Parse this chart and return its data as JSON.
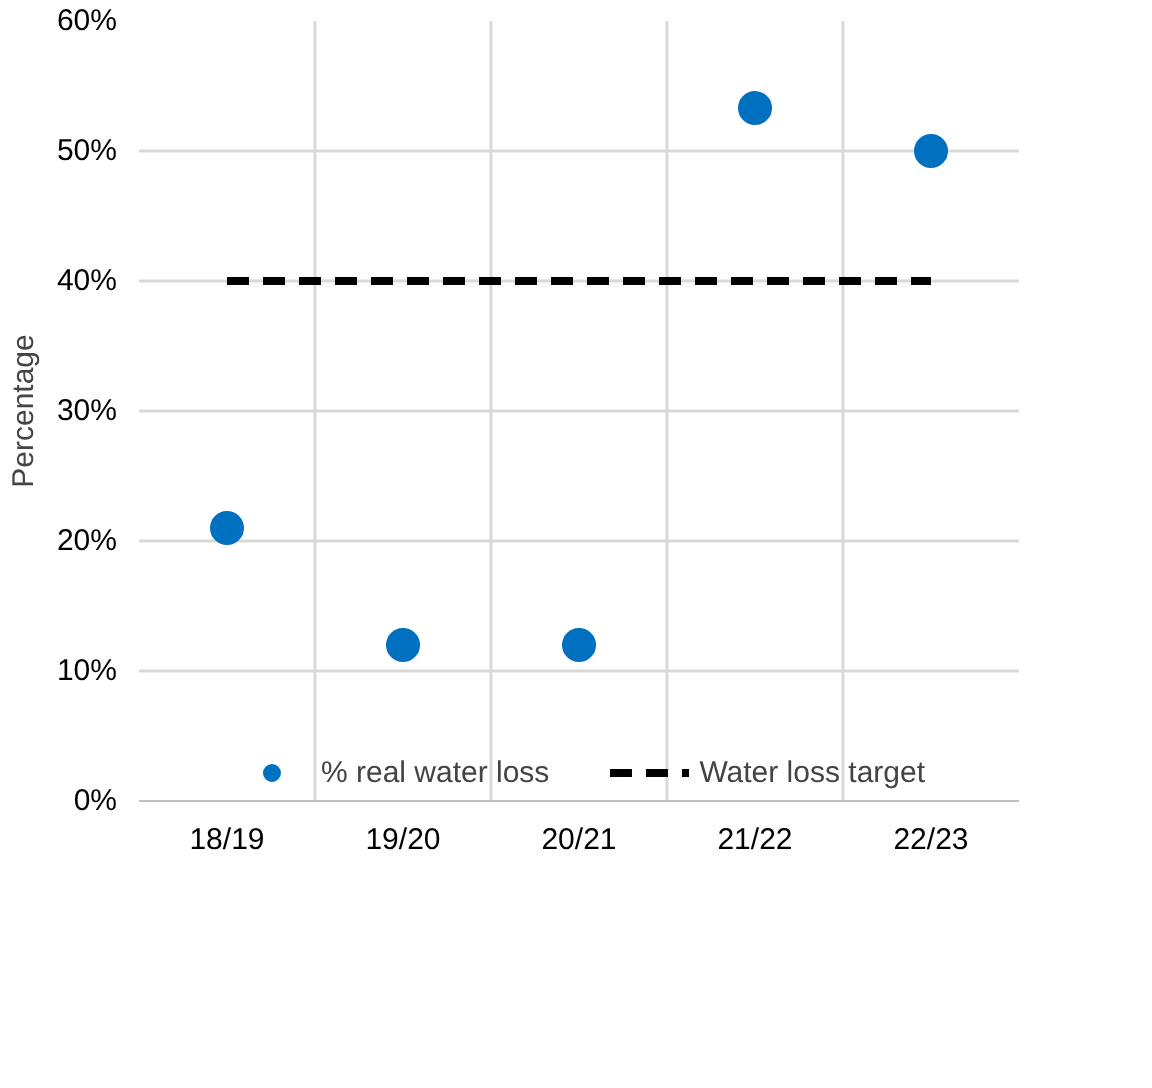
{
  "chart_data": {
    "type": "scatter",
    "ylabel": "Percentage",
    "categories": [
      "18/19",
      "19/20",
      "20/21",
      "21/22",
      "22/23"
    ],
    "series": [
      {
        "name": "% real water loss",
        "color": "#0070c0",
        "marker": "circle",
        "values": [
          21,
          12,
          12,
          53.3,
          50
        ]
      },
      {
        "name": "Water loss target",
        "type": "line",
        "color": "#000000",
        "line_style": "dashed",
        "marker": "none",
        "values": [
          40,
          40,
          40,
          40,
          40
        ]
      }
    ],
    "ylim": [
      0,
      60
    ],
    "yticks": [
      {
        "value": 0,
        "label": "0%"
      },
      {
        "value": 10,
        "label": "10%"
      },
      {
        "value": 20,
        "label": "20%"
      },
      {
        "value": 30,
        "label": "30%"
      },
      {
        "value": 40,
        "label": "40%"
      },
      {
        "value": 50,
        "label": "50%"
      },
      {
        "value": 60,
        "label": "60%"
      }
    ],
    "grid": true,
    "legend": "bottom"
  }
}
